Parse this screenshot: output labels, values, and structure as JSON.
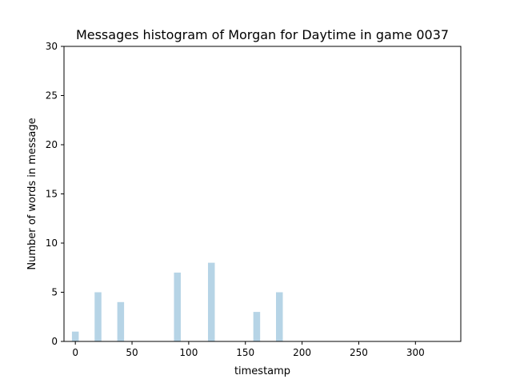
{
  "chart_data": {
    "type": "bar",
    "title": "Messages histogram of Morgan for Daytime in game 0037",
    "xlabel": "timestamp",
    "ylabel": "Number of words in message",
    "xlim": [
      -10,
      340
    ],
    "ylim": [
      0,
      30
    ],
    "xticks": [
      0,
      50,
      100,
      150,
      200,
      250,
      300
    ],
    "yticks": [
      0,
      5,
      10,
      15,
      20,
      25,
      30
    ],
    "bar_width": 6,
    "bar_color": "#b6d4e6",
    "grid": false,
    "x": [
      0,
      20,
      40,
      90,
      120,
      160,
      180
    ],
    "values": [
      1,
      5,
      4,
      7,
      8,
      3,
      5
    ]
  }
}
